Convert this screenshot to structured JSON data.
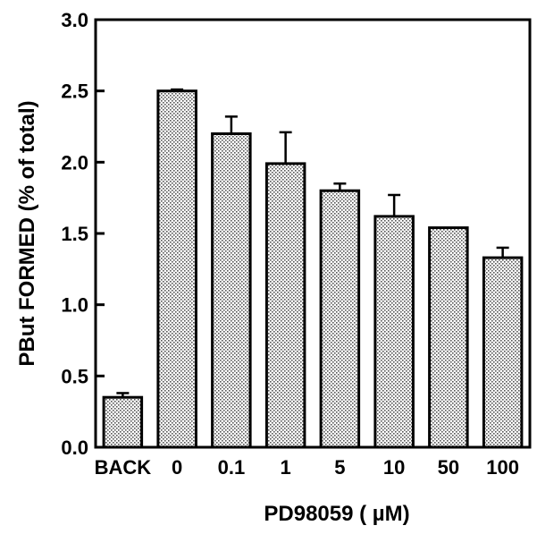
{
  "chart_data": {
    "type": "bar",
    "categories": [
      "BACK",
      "0",
      "0.1",
      "1",
      "5",
      "10",
      "50",
      "100"
    ],
    "values": [
      0.35,
      2.5,
      2.2,
      1.99,
      1.8,
      1.62,
      1.54,
      1.33
    ],
    "errors": [
      0.03,
      0.01,
      0.12,
      0.22,
      0.05,
      0.15,
      0.0,
      0.07
    ],
    "xlabel": "PD98059 ( µM)",
    "ylabel": "PBut FORMED (% of total)",
    "ylim": [
      0,
      3.0
    ],
    "yticks": [
      "0.0",
      "0.5",
      "1.0",
      "1.5",
      "2.0",
      "2.5",
      "3.0"
    ],
    "grid": false,
    "bar_fill": "stippled gray",
    "colors": {
      "axis": "#000000",
      "bar_dots": "#555555",
      "bar_background": "#ffffff"
    }
  }
}
